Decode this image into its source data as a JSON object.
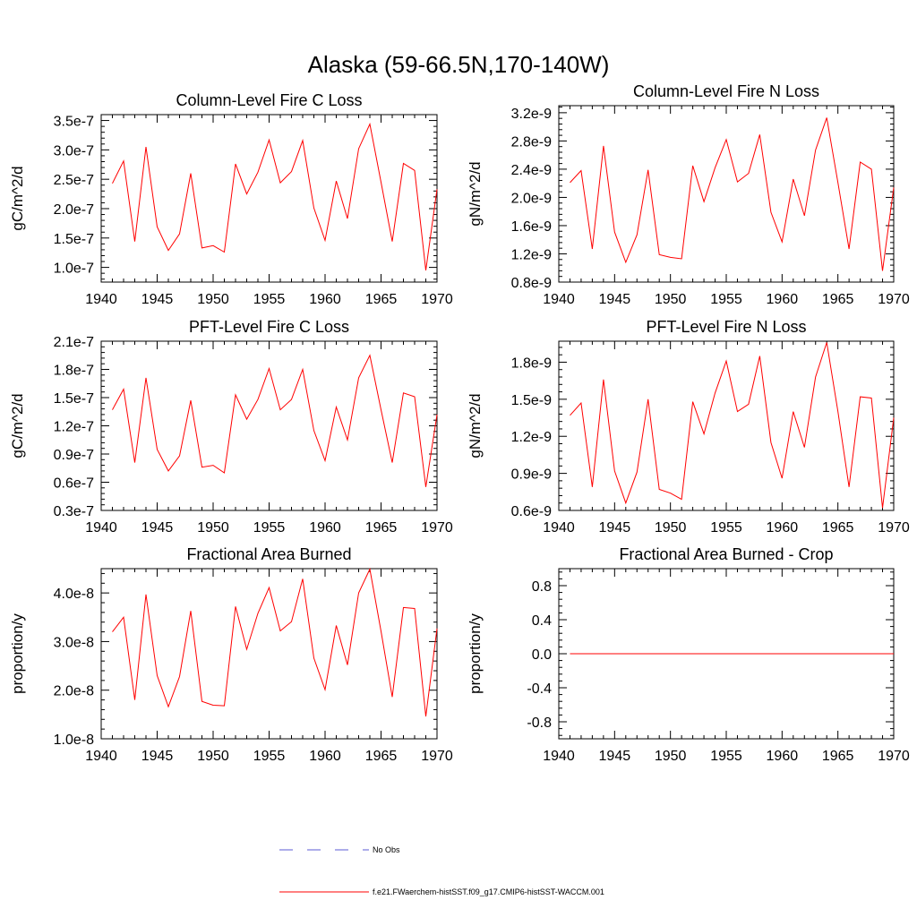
{
  "figure": {
    "title": "Alaska (59-66.5N,170-140W)"
  },
  "legend": {
    "entries": [
      {
        "label": "No Obs",
        "color": "#5b5bd6",
        "style": "dashed"
      },
      {
        "label": "f.e21.FWaerchem-histSST.f09_g17.CMIP6-histSST-WACCM.001",
        "color": "#ff0000",
        "style": "solid"
      }
    ]
  },
  "chart_data": [
    {
      "type": "line",
      "title": "Column-Level Fire C Loss",
      "ylabel": "gC/m^2/d",
      "xlim": [
        1940,
        1970
      ],
      "ylim": [
        7.5e-08,
        3.6e-07
      ],
      "xticks": [
        1940,
        1945,
        1950,
        1955,
        1960,
        1965,
        1970
      ],
      "xticklabels": [
        "1940",
        "1945",
        "1950",
        "1955",
        "1960",
        "1965",
        "1970"
      ],
      "yticks": [
        1e-07,
        1.5e-07,
        2e-07,
        2.5e-07,
        3e-07,
        3.5e-07
      ],
      "yticklabels": [
        "1.0e-7",
        "1.5e-7",
        "2.0e-7",
        "2.5e-7",
        "3.0e-7",
        "3.5e-7"
      ],
      "series": [
        {
          "color": "#ff0000",
          "x": [
            1941,
            1942,
            1943,
            1944,
            1945,
            1946,
            1947,
            1948,
            1949,
            1950,
            1951,
            1952,
            1953,
            1954,
            1955,
            1956,
            1957,
            1958,
            1959,
            1960,
            1961,
            1962,
            1963,
            1964,
            1965,
            1966,
            1967,
            1968,
            1969,
            1970
          ],
          "values": [
            2.43e-07,
            2.81e-07,
            1.44e-07,
            3.05e-07,
            1.69e-07,
            1.29e-07,
            1.57e-07,
            2.6e-07,
            1.33e-07,
            1.37e-07,
            1.26e-07,
            2.76e-07,
            2.25e-07,
            2.62e-07,
            3.17e-07,
            2.44e-07,
            2.63e-07,
            3.16e-07,
            2.01e-07,
            1.46e-07,
            2.47e-07,
            1.83e-07,
            3.02e-07,
            3.44e-07,
            2.45e-07,
            1.44e-07,
            2.77e-07,
            2.65e-07,
            9.5e-08,
            2.33e-07
          ]
        }
      ]
    },
    {
      "type": "line",
      "title": "Column-Level Fire N Loss",
      "ylabel": "gN/m^2/d",
      "xlim": [
        1940,
        1970
      ],
      "ylim": [
        8e-10,
        3.3e-09
      ],
      "xticks": [
        1940,
        1945,
        1950,
        1955,
        1960,
        1965,
        1970
      ],
      "xticklabels": [
        "1940",
        "1945",
        "1950",
        "1955",
        "1960",
        "1965",
        "1970"
      ],
      "yticks": [
        8e-10,
        1.2e-09,
        1.6e-09,
        2e-09,
        2.4e-09,
        2.8e-09,
        3.2e-09
      ],
      "yticklabels": [
        "0.8e-9",
        "1.2e-9",
        "1.6e-9",
        "2.0e-9",
        "2.4e-9",
        "2.8e-9",
        "3.2e-9"
      ],
      "series": [
        {
          "color": "#ff0000",
          "x": [
            1941,
            1942,
            1943,
            1944,
            1945,
            1946,
            1947,
            1948,
            1949,
            1950,
            1951,
            1952,
            1953,
            1954,
            1955,
            1956,
            1957,
            1958,
            1959,
            1960,
            1961,
            1962,
            1963,
            1964,
            1965,
            1966,
            1967,
            1968,
            1969,
            1970
          ],
          "values": [
            2.21e-09,
            2.38e-09,
            1.27e-09,
            2.73e-09,
            1.51e-09,
            1.08e-09,
            1.47e-09,
            2.39e-09,
            1.19e-09,
            1.15e-09,
            1.13e-09,
            2.45e-09,
            1.94e-09,
            2.42e-09,
            2.82e-09,
            2.22e-09,
            2.34e-09,
            2.89e-09,
            1.79e-09,
            1.37e-09,
            2.26e-09,
            1.74e-09,
            2.67e-09,
            3.13e-09,
            2.21e-09,
            1.27e-09,
            2.5e-09,
            2.4e-09,
            9.6e-10,
            2.14e-09
          ]
        }
      ]
    },
    {
      "type": "line",
      "title": "PFT-Level Fire C Loss",
      "ylabel": "gC/m^2/d",
      "xlim": [
        1940,
        1970
      ],
      "ylim": [
        3e-08,
        2.1e-07
      ],
      "xticks": [
        1940,
        1945,
        1950,
        1955,
        1960,
        1965,
        1970
      ],
      "xticklabels": [
        "1940",
        "1945",
        "1950",
        "1955",
        "1960",
        "1965",
        "1970"
      ],
      "yticks": [
        3e-08,
        6e-08,
        9e-08,
        1.2e-07,
        1.5e-07,
        1.8e-07,
        2.1e-07
      ],
      "yticklabels": [
        "0.3e-7",
        "0.6e-7",
        "0.9e-7",
        "1.2e-7",
        "1.5e-7",
        "1.8e-7",
        "2.1e-7"
      ],
      "series": [
        {
          "color": "#ff0000",
          "x": [
            1941,
            1942,
            1943,
            1944,
            1945,
            1946,
            1947,
            1948,
            1949,
            1950,
            1951,
            1952,
            1953,
            1954,
            1955,
            1956,
            1957,
            1958,
            1959,
            1960,
            1961,
            1962,
            1963,
            1964,
            1965,
            1966,
            1967,
            1968,
            1969,
            1970
          ],
          "values": [
            1.37e-07,
            1.59e-07,
            8.1e-08,
            1.71e-07,
            9.5e-08,
            7.2e-08,
            8.8e-08,
            1.47e-07,
            7.6e-08,
            7.8e-08,
            7e-08,
            1.53e-07,
            1.27e-07,
            1.48e-07,
            1.81e-07,
            1.37e-07,
            1.48e-07,
            1.8e-07,
            1.15e-07,
            8.3e-08,
            1.4e-07,
            1.05e-07,
            1.71e-07,
            1.95e-07,
            1.37e-07,
            8.1e-08,
            1.55e-07,
            1.51e-07,
            5.5e-08,
            1.32e-07
          ]
        }
      ]
    },
    {
      "type": "line",
      "title": "PFT-Level Fire N Loss",
      "ylabel": "gN/m^2/d",
      "xlim": [
        1940,
        1970
      ],
      "ylim": [
        6e-10,
        1.97e-09
      ],
      "xticks": [
        1940,
        1945,
        1950,
        1955,
        1960,
        1965,
        1970
      ],
      "xticklabels": [
        "1940",
        "1945",
        "1950",
        "1955",
        "1960",
        "1965",
        "1970"
      ],
      "yticks": [
        6e-10,
        9e-10,
        1.2e-09,
        1.5e-09,
        1.8e-09
      ],
      "yticklabels": [
        "0.6e-9",
        "0.9e-9",
        "1.2e-9",
        "1.5e-9",
        "1.8e-9"
      ],
      "series": [
        {
          "color": "#ff0000",
          "x": [
            1941,
            1942,
            1943,
            1944,
            1945,
            1946,
            1947,
            1948,
            1949,
            1950,
            1951,
            1952,
            1953,
            1954,
            1955,
            1956,
            1957,
            1958,
            1959,
            1960,
            1961,
            1962,
            1963,
            1964,
            1965,
            1966,
            1967,
            1968,
            1969,
            1970
          ],
          "values": [
            1.37e-09,
            1.47e-09,
            7.9e-10,
            1.66e-09,
            9.2e-10,
            6.6e-10,
            9.1e-10,
            1.5e-09,
            7.7e-10,
            7.4e-10,
            6.9e-10,
            1.48e-09,
            1.22e-09,
            1.55e-09,
            1.81e-09,
            1.4e-09,
            1.46e-09,
            1.85e-09,
            1.15e-09,
            8.6e-10,
            1.4e-09,
            1.11e-09,
            1.68e-09,
            1.96e-09,
            1.4e-09,
            7.9e-10,
            1.52e-09,
            1.51e-09,
            6.2e-10,
            1.35e-09
          ]
        }
      ]
    },
    {
      "type": "line",
      "title": "Fractional Area Burned",
      "ylabel": "proportion/y",
      "xlim": [
        1940,
        1970
      ],
      "ylim": [
        1e-08,
        4.5e-08
      ],
      "xticks": [
        1940,
        1945,
        1950,
        1955,
        1960,
        1965,
        1970
      ],
      "xticklabels": [
        "1940",
        "1945",
        "1950",
        "1955",
        "1960",
        "1965",
        "1970"
      ],
      "yticks": [
        1e-08,
        2e-08,
        3e-08,
        4e-08
      ],
      "yticklabels": [
        "1.0e-8",
        "2.0e-8",
        "3.0e-8",
        "4.0e-8"
      ],
      "series": [
        {
          "color": "#ff0000",
          "x": [
            1941,
            1942,
            1943,
            1944,
            1945,
            1946,
            1947,
            1948,
            1949,
            1950,
            1951,
            1952,
            1953,
            1954,
            1955,
            1956,
            1957,
            1958,
            1959,
            1960,
            1961,
            1962,
            1963,
            1964,
            1965,
            1966,
            1967,
            1968,
            1969,
            1970
          ],
          "values": [
            3.2e-08,
            3.5e-08,
            1.8e-08,
            3.97e-08,
            2.3e-08,
            1.66e-08,
            2.28e-08,
            3.63e-08,
            1.77e-08,
            1.69e-08,
            1.68e-08,
            3.72e-08,
            2.84e-08,
            3.58e-08,
            4.11e-08,
            3.22e-08,
            3.41e-08,
            4.29e-08,
            2.66e-08,
            2.01e-08,
            3.33e-08,
            2.52e-08,
            4e-08,
            4.49e-08,
            3.21e-08,
            1.86e-08,
            3.7e-08,
            3.68e-08,
            1.46e-08,
            3.27e-08
          ]
        }
      ]
    },
    {
      "type": "line",
      "title": "Fractional Area Burned - Crop",
      "ylabel": "proportion/y",
      "xlim": [
        1940,
        1970
      ],
      "ylim": [
        -1.0,
        1.0
      ],
      "xticks": [
        1940,
        1945,
        1950,
        1955,
        1960,
        1965,
        1970
      ],
      "xticklabels": [
        "1940",
        "1945",
        "1950",
        "1955",
        "1960",
        "1965",
        "1970"
      ],
      "yticks": [
        -0.8,
        -0.4,
        0.0,
        0.4,
        0.8
      ],
      "yticklabels": [
        "-0.8",
        "-0.4",
        "0.0",
        "0.4",
        "0.8"
      ],
      "series": [
        {
          "color": "#ff0000",
          "x": [
            1941,
            1942,
            1943,
            1944,
            1945,
            1946,
            1947,
            1948,
            1949,
            1950,
            1951,
            1952,
            1953,
            1954,
            1955,
            1956,
            1957,
            1958,
            1959,
            1960,
            1961,
            1962,
            1963,
            1964,
            1965,
            1966,
            1967,
            1968,
            1969,
            1970
          ],
          "values": [
            0,
            0,
            0,
            0,
            0,
            0,
            0,
            0,
            0,
            0,
            0,
            0,
            0,
            0,
            0,
            0,
            0,
            0,
            0,
            0,
            0,
            0,
            0,
            0,
            0,
            0,
            0,
            0,
            0,
            0
          ]
        }
      ]
    }
  ]
}
